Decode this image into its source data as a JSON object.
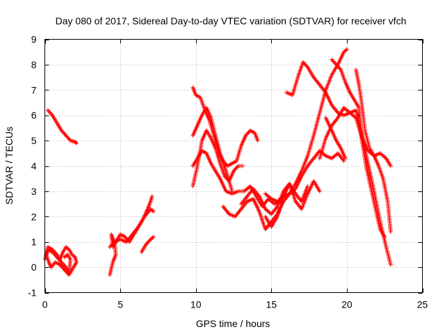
{
  "chart_data": {
    "type": "scatter",
    "title": "Day 080 of 2017, Sidereal Day-to-day VTEC variation (SDTVAR) for receiver vfch",
    "xlabel": "GPS time / hours",
    "ylabel": "SDTVAR / TECUs",
    "xlim": [
      0,
      25
    ],
    "ylim": [
      -1,
      9
    ],
    "xticks": [
      0,
      5,
      10,
      15,
      20,
      25
    ],
    "yticks": [
      -1,
      0,
      1,
      2,
      3,
      4,
      5,
      6,
      7,
      8,
      9
    ],
    "grid": true,
    "marker": "plus",
    "color": "#ff0000",
    "series": [
      {
        "x": [
          0.2,
          0.5,
          0.8,
          1.1,
          1.4,
          1.7,
          2.0,
          2.1
        ],
        "y": [
          6.2,
          6.0,
          5.7,
          5.4,
          5.2,
          5.0,
          4.95,
          4.9
        ]
      },
      {
        "x": [
          0.0,
          0.2,
          0.5,
          0.8,
          1.0,
          1.2,
          1.4,
          1.6,
          1.8,
          2.0,
          2.1,
          1.9,
          1.6,
          1.3,
          1.0,
          0.7,
          0.4,
          0.2,
          0.1,
          0.2,
          0.5,
          0.8,
          1.1,
          1.4,
          1.6,
          1.7,
          1.5,
          1.3
        ],
        "y": [
          0.3,
          0.8,
          0.7,
          0.5,
          0.3,
          0.6,
          0.8,
          0.7,
          0.5,
          0.4,
          0.2,
          0.0,
          -0.3,
          -0.1,
          0.1,
          0.2,
          0.0,
          0.3,
          0.5,
          0.7,
          0.6,
          0.4,
          0.2,
          0.0,
          -0.2,
          0.3,
          0.5,
          0.4
        ]
      },
      {
        "x": [
          4.3,
          4.5,
          4.7,
          4.6,
          4.4,
          4.5,
          4.8,
          5.0,
          5.3,
          5.6,
          5.9,
          6.2,
          6.5,
          6.8,
          7.0,
          7.1
        ],
        "y": [
          -0.3,
          0.2,
          0.5,
          1.0,
          1.3,
          0.8,
          1.1,
          1.3,
          1.2,
          1.0,
          1.3,
          1.6,
          1.9,
          2.3,
          2.6,
          2.8
        ]
      },
      {
        "x": [
          4.3,
          4.6,
          5.0,
          5.4,
          5.8,
          6.2,
          6.6,
          7.0,
          7.2
        ],
        "y": [
          0.8,
          1.0,
          1.1,
          1.0,
          1.3,
          1.6,
          2.0,
          2.3,
          2.2
        ]
      },
      {
        "x": [
          6.4,
          6.7,
          7.0,
          7.2
        ],
        "y": [
          0.6,
          0.9,
          1.1,
          1.2
        ]
      },
      {
        "x": [
          9.8,
          10.0,
          10.3,
          10.6,
          10.9,
          11.2,
          11.5,
          11.8,
          12.1,
          12.4,
          12.7,
          13.0,
          13.3,
          13.6,
          13.9,
          14.1
        ],
        "y": [
          7.1,
          6.8,
          6.7,
          6.2,
          5.8,
          5.2,
          4.6,
          4.2,
          4.0,
          4.1,
          4.2,
          4.8,
          5.2,
          5.4,
          5.3,
          5.0
        ]
      },
      {
        "x": [
          9.8,
          10.1,
          10.4,
          10.7,
          11.0,
          11.3,
          11.6,
          11.9,
          12.2,
          12.5,
          12.8,
          13.1
        ],
        "y": [
          3.2,
          4.0,
          5.0,
          5.4,
          5.1,
          4.7,
          4.1,
          3.6,
          3.4,
          3.8,
          4.0,
          4.0
        ]
      },
      {
        "x": [
          9.8,
          10.1,
          10.4,
          10.7,
          11.0,
          11.3,
          11.6,
          12.0,
          12.4,
          12.8,
          13.2,
          13.6,
          14.0,
          14.4,
          14.8,
          15.2,
          15.6
        ],
        "y": [
          4.0,
          4.3,
          4.6,
          4.5,
          4.1,
          3.8,
          3.5,
          3.0,
          2.9,
          3.0,
          3.0,
          3.2,
          2.8,
          2.4,
          2.7,
          2.5,
          2.6
        ]
      },
      {
        "x": [
          9.8,
          10.1,
          10.4,
          10.7,
          11.0,
          11.3,
          11.6,
          12.0,
          12.4
        ],
        "y": [
          5.2,
          5.6,
          6.0,
          6.3,
          5.9,
          5.2,
          4.5,
          3.8,
          3.0
        ]
      },
      {
        "x": [
          11.8,
          12.2,
          12.6,
          13.0,
          13.4,
          13.8,
          14.2,
          14.6,
          15.0,
          15.4,
          15.8,
          16.2,
          16.6,
          17.0,
          17.4,
          17.8,
          18.2,
          18.6,
          19.0,
          19.4,
          19.8
        ],
        "y": [
          2.4,
          2.1,
          2.0,
          2.3,
          2.6,
          2.7,
          2.2,
          1.5,
          1.8,
          2.1,
          2.6,
          2.9,
          3.1,
          3.6,
          4.0,
          4.3,
          4.6,
          4.4,
          4.3,
          4.5,
          4.2
        ]
      },
      {
        "x": [
          13.0,
          13.4,
          13.8,
          14.2,
          14.6,
          15.0,
          15.4,
          15.8,
          16.2,
          16.6,
          17.0,
          17.4
        ],
        "y": [
          2.5,
          2.8,
          3.1,
          2.8,
          2.3,
          2.1,
          2.4,
          3.0,
          3.3,
          2.9,
          2.6,
          3.2
        ]
      },
      {
        "x": [
          14.6,
          15.0,
          15.4,
          15.8,
          16.2,
          16.6,
          17.0,
          17.4,
          17.8,
          18.2,
          18.6,
          19.0,
          19.4,
          19.8,
          20.0
        ],
        "y": [
          2.9,
          2.7,
          2.6,
          2.8,
          2.9,
          3.3,
          3.8,
          4.4,
          5.2,
          6.1,
          7.0,
          7.6,
          8.0,
          8.5,
          8.6
        ]
      },
      {
        "x": [
          14.6,
          15.0,
          15.4,
          15.8,
          16.2,
          16.6,
          17.0,
          17.4,
          17.8,
          18.2
        ],
        "y": [
          2.0,
          1.6,
          2.0,
          2.8,
          3.3,
          2.6,
          2.3,
          2.9,
          3.4,
          3.0
        ]
      },
      {
        "x": [
          16.0,
          16.4,
          16.8,
          17.1,
          17.4,
          17.8,
          18.2,
          18.6,
          19.0,
          19.4,
          19.8,
          20.2,
          20.6,
          21.0,
          21.4,
          21.8,
          22.2,
          22.6,
          22.9
        ],
        "y": [
          6.9,
          6.8,
          7.6,
          8.1,
          7.9,
          7.5,
          7.2,
          6.9,
          6.4,
          6.1,
          6.0,
          6.1,
          5.9,
          5.1,
          4.6,
          4.4,
          4.5,
          4.3,
          4.0
        ]
      },
      {
        "x": [
          18.2,
          18.6,
          19.0,
          19.4,
          19.8,
          20.2,
          20.6,
          21.0,
          21.4,
          21.8,
          22.2,
          22.6,
          22.9
        ],
        "y": [
          4.3,
          5.1,
          5.6,
          5.9,
          6.3,
          6.1,
          6.2,
          5.2,
          4.1,
          3.0,
          1.8,
          0.8,
          0.1
        ]
      },
      {
        "x": [
          19.0,
          19.3,
          19.6,
          19.9,
          20.2,
          20.5,
          20.8,
          21.0,
          21.3,
          21.6,
          21.9,
          22.2,
          22.5
        ],
        "y": [
          8.2,
          8.0,
          7.8,
          7.3,
          6.9,
          6.6,
          6.3,
          5.0,
          3.9,
          3.1,
          2.3,
          1.5,
          1.2
        ]
      },
      {
        "x": [
          20.6,
          20.8,
          21.0,
          21.2,
          21.5,
          21.8,
          22.1,
          22.4,
          22.7,
          22.9
        ],
        "y": [
          7.8,
          7.2,
          6.4,
          5.4,
          4.7,
          4.4,
          4.0,
          3.5,
          2.6,
          1.4
        ]
      },
      {
        "x": [
          18.6,
          19.0,
          19.3,
          19.6,
          19.9
        ],
        "y": [
          5.9,
          5.4,
          5.0,
          4.7,
          4.3
        ]
      }
    ]
  }
}
